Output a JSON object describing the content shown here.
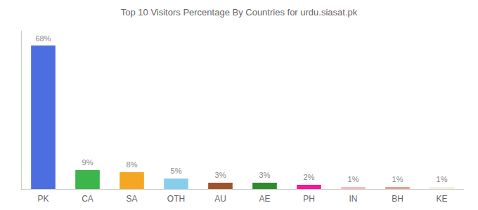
{
  "chart_data": {
    "type": "bar",
    "title": "Top 10 Visitors Percentage By Countries for urdu.siasat.pk",
    "categories": [
      "PK",
      "CA",
      "SA",
      "OTH",
      "AU",
      "AE",
      "PH",
      "IN",
      "BH",
      "KE"
    ],
    "values": [
      68,
      9,
      8,
      5,
      3,
      3,
      2,
      1,
      1,
      1
    ],
    "value_labels": [
      "68%",
      "9%",
      "8%",
      "5%",
      "3%",
      "3%",
      "2%",
      "1%",
      "1%",
      "1%"
    ],
    "colors": [
      "#4d6ee0",
      "#3cb54a",
      "#f5a623",
      "#87ceeb",
      "#a0522d",
      "#2e8b2e",
      "#ff1493",
      "#ffb6c1",
      "#e8a090",
      "#f5f0e0"
    ],
    "ylim": [
      0,
      75
    ],
    "data_labels": true,
    "tick_labels": "x",
    "grid": false
  }
}
